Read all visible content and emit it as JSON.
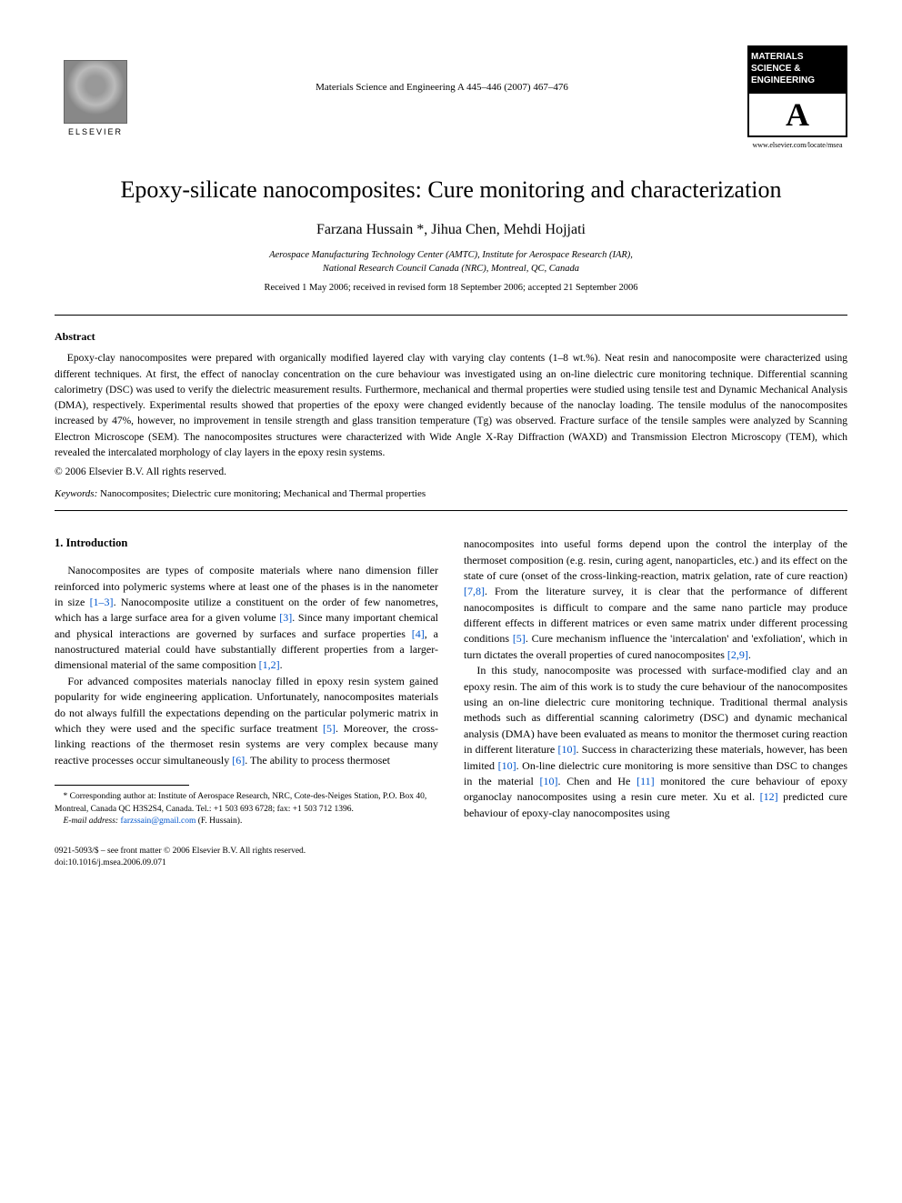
{
  "header": {
    "elsevier_label": "ELSEVIER",
    "journal_reference": "Materials Science and Engineering A 445–446 (2007) 467–476",
    "journal_logo_text": "MATERIALS SCIENCE & ENGINEERING",
    "journal_logo_letter": "A",
    "journal_url": "www.elsevier.com/locate/msea"
  },
  "title": "Epoxy-silicate nanocomposites: Cure monitoring and characterization",
  "authors": "Farzana Hussain *, Jihua Chen, Mehdi Hojjati",
  "affiliation_line1": "Aerospace Manufacturing Technology Center (AMTC), Institute for Aerospace Research (IAR),",
  "affiliation_line2": "National Research Council Canada (NRC), Montreal, QC, Canada",
  "dates": "Received 1 May 2006; received in revised form 18 September 2006; accepted 21 September 2006",
  "abstract": {
    "heading": "Abstract",
    "text": "Epoxy-clay nanocomposites were prepared with organically modified layered clay with varying clay contents (1–8 wt.%). Neat resin and nanocomposite were characterized using different techniques. At first, the effect of nanoclay concentration on the cure behaviour was investigated using an on-line dielectric cure monitoring technique. Differential scanning calorimetry (DSC) was used to verify the dielectric measurement results. Furthermore, mechanical and thermal properties were studied using tensile test and Dynamic Mechanical Analysis (DMA), respectively. Experimental results showed that properties of the epoxy were changed evidently because of the nanoclay loading. The tensile modulus of the nanocomposites increased by 47%, however, no improvement in tensile strength and glass transition temperature (Tg) was observed. Fracture surface of the tensile samples were analyzed by Scanning Electron Microscope (SEM). The nanocomposites structures were characterized with Wide Angle X-Ray Diffraction (WAXD) and Transmission Electron Microscopy (TEM), which revealed the intercalated morphology of clay layers in the epoxy resin systems.",
    "copyright": "© 2006 Elsevier B.V. All rights reserved."
  },
  "keywords": {
    "label": "Keywords:",
    "text": " Nanocomposites; Dielectric cure monitoring; Mechanical and Thermal properties"
  },
  "section1": {
    "heading": "1.  Introduction",
    "col1_p1_a": "Nanocomposites are types of composite materials where nano dimension filler reinforced into polymeric systems where at least one of the phases is in the nanometer in size ",
    "col1_p1_cite1": "[1–3]",
    "col1_p1_b": ". Nanocomposite utilize a constituent on the order of few nanometres, which has a large surface area for a given volume ",
    "col1_p1_cite2": "[3]",
    "col1_p1_c": ". Since many important chemical and physical interactions are governed by surfaces and surface properties ",
    "col1_p1_cite3": "[4]",
    "col1_p1_d": ", a nanostructured material could have substantially different properties from a larger-dimensional material of the same composition ",
    "col1_p1_cite4": "[1,2]",
    "col1_p1_e": ".",
    "col1_p2_a": "For advanced composites materials nanoclay filled in epoxy resin system gained popularity for wide engineering application. Unfortunately, nanocomposites materials do not always fulfill the expectations depending on the particular polymeric matrix in which they were used and the specific surface treatment ",
    "col1_p2_cite1": "[5]",
    "col1_p2_b": ". Moreover, the cross-linking reactions of the thermoset resin systems are very complex because many reactive processes occur simultaneously ",
    "col1_p2_cite2": "[6]",
    "col1_p2_c": ". The ability to process thermoset",
    "col2_p1_a": "nanocomposites into useful forms depend upon the control the interplay of the thermoset composition (e.g. resin, curing agent, nanoparticles, etc.) and its effect on the state of cure (onset of the cross-linking-reaction, matrix gelation, rate of cure reaction) ",
    "col2_p1_cite1": "[7,8]",
    "col2_p1_b": ". From the literature survey, it is clear that the performance of different nanocomposites is difficult to compare and the same nano particle may produce different effects in different matrices or even same matrix under different processing conditions ",
    "col2_p1_cite2": "[5]",
    "col2_p1_c": ". Cure mechanism influence the 'intercalation' and 'exfoliation', which in turn dictates the overall properties of cured nanocomposites ",
    "col2_p1_cite3": "[2,9]",
    "col2_p1_d": ".",
    "col2_p2_a": "In this study, nanocomposite was processed with surface-modified clay and an epoxy resin. The aim of this work is to study the cure behaviour of the nanocomposites using an on-line dielectric cure monitoring technique. Traditional thermal analysis methods such as differential scanning calorimetry (DSC) and dynamic mechanical analysis (DMA) have been evaluated as means to monitor the thermoset curing reaction in different literature ",
    "col2_p2_cite1": "[10]",
    "col2_p2_b": ". Success in characterizing these materials, however, has been limited ",
    "col2_p2_cite2": "[10]",
    "col2_p2_c": ". On-line dielectric cure monitoring is more sensitive than DSC to changes in the material ",
    "col2_p2_cite3": "[10]",
    "col2_p2_d": ". Chen and He ",
    "col2_p2_cite4": "[11]",
    "col2_p2_e": " monitored the cure behaviour of epoxy organoclay nanocomposites using a resin cure meter. Xu et al. ",
    "col2_p2_cite5": "[12]",
    "col2_p2_f": " predicted cure behaviour of epoxy-clay nanocomposites using"
  },
  "footnote": {
    "corr": "* Corresponding author at: Institute of Aerospace Research, NRC, Cote-des-Neiges Station, P.O. Box 40, Montreal, Canada QC H3S2S4, Canada. Tel.: +1 503 693 6728; fax: +1 503 712 1396.",
    "email_label": "E-mail address:",
    "email": "farzssain@gmail.com",
    "email_paren": " (F. Hussain)."
  },
  "footer": {
    "line1": "0921-5093/$ – see front matter © 2006 Elsevier B.V. All rights reserved.",
    "line2": "doi:10.1016/j.msea.2006.09.071"
  },
  "colors": {
    "citation": "#0055cc",
    "text": "#000000",
    "background": "#ffffff"
  }
}
